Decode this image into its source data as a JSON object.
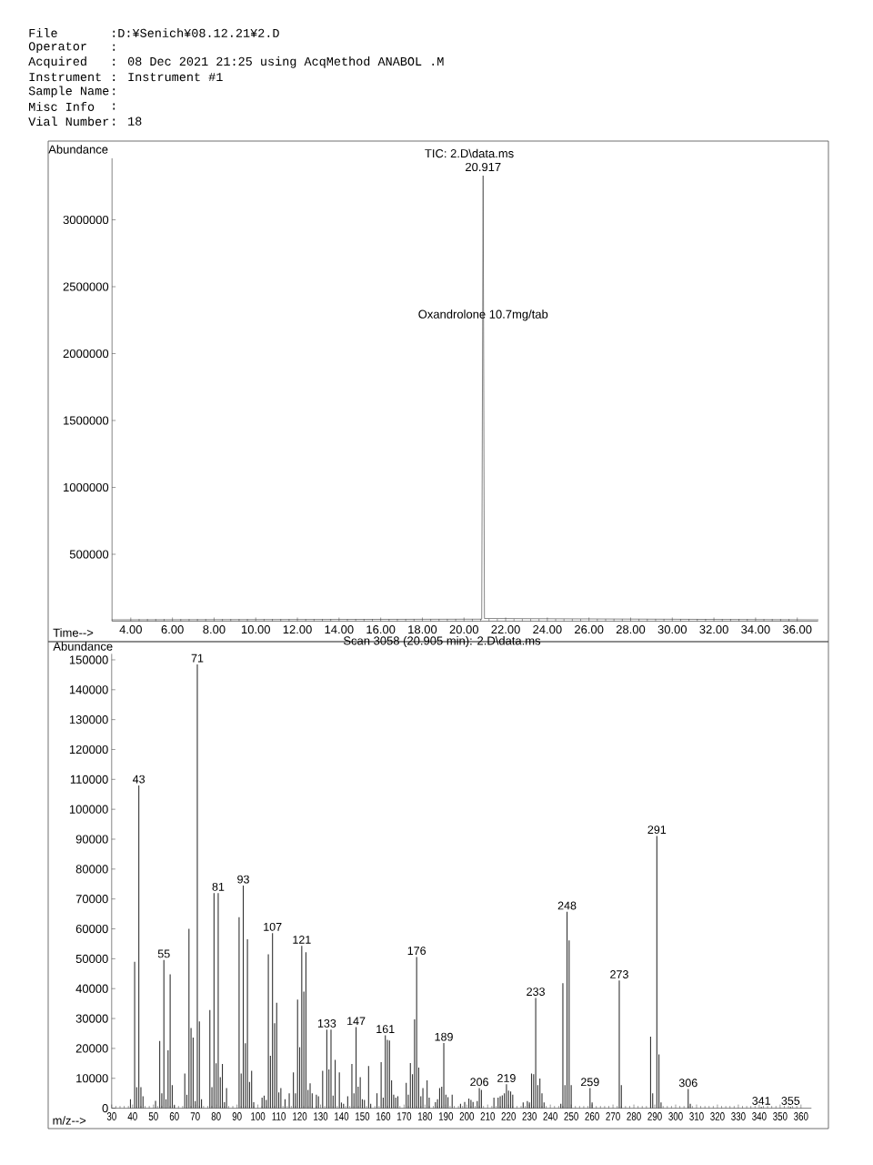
{
  "chart_data": [
    {
      "type": "other",
      "annotations": [
        "File",
        ":D:¥Senich¥08.12.21¥2.D",
        "Operator",
        ":",
        "Acquired",
        ": 08 Dec 2021 21:25 using AcqMethod ANABOL .M",
        "Instrument",
        ": Instrument #1",
        "Sample Name",
        ":",
        "Misc Info",
        ":",
        "Vial Number",
        ": 18"
      ]
    },
    {
      "type": "line",
      "title": "TIC: 2.D\\data.ms",
      "xlabel": "Time-->",
      "ylabel": "Abundance",
      "color": "#333333",
      "x": [
        3.1,
        20.85,
        20.917,
        20.98,
        37.0
      ],
      "values": [
        10000,
        15000,
        3330000,
        20000,
        10000
      ],
      "xlim": [
        3.1,
        37.0
      ],
      "ylim": [
        0,
        3460000
      ],
      "xticks": [
        {
          "value": 4,
          "label": "4.00"
        },
        {
          "value": 6,
          "label": "6.00"
        },
        {
          "value": 8,
          "label": "8.00"
        },
        {
          "value": 10,
          "label": "10.00"
        },
        {
          "value": 12,
          "label": "12.00"
        },
        {
          "value": 14,
          "label": "14.00"
        },
        {
          "value": 16,
          "label": "16.00"
        },
        {
          "value": 18,
          "label": "18.00"
        },
        {
          "value": 20,
          "label": "20.00"
        },
        {
          "value": 22,
          "label": "22.00"
        },
        {
          "value": 24,
          "label": "24.00"
        },
        {
          "value": 26,
          "label": "26.00"
        },
        {
          "value": 28,
          "label": "28.00"
        },
        {
          "value": 30,
          "label": "30.00"
        },
        {
          "value": 32,
          "label": "32.00"
        },
        {
          "value": 34,
          "label": "34.00"
        },
        {
          "value": 36,
          "label": "36.00"
        }
      ],
      "yticks": [
        500000,
        1000000,
        1500000,
        2000000,
        2500000,
        3000000
      ],
      "annotations": [
        {
          "text": "20.917",
          "x": 20.917,
          "y": 3330000
        },
        {
          "text": "Oxandrolone 10.7mg/tab",
          "x": 20.917,
          "y": 2230000
        }
      ]
    },
    {
      "type": "bar",
      "title": "Scan 3058 (20.905 min): 2.D\\data.ms",
      "xlabel": "m/z-->",
      "ylabel": "Abundance",
      "color": "#333333",
      "x": [
        39,
        41,
        42,
        43,
        44,
        45,
        51,
        53,
        54,
        55,
        56,
        57,
        58,
        59,
        60,
        65,
        66,
        67,
        68,
        69,
        70,
        71,
        72,
        73,
        77,
        78,
        79,
        80,
        81,
        82,
        83,
        84,
        85,
        91,
        92,
        93,
        94,
        95,
        96,
        97,
        98,
        102,
        103,
        104,
        105,
        106,
        107,
        108,
        109,
        110,
        111,
        113,
        115,
        117,
        118,
        119,
        120,
        121,
        122,
        123,
        124,
        125,
        126,
        128,
        129,
        131,
        133,
        134,
        135,
        136,
        137,
        139,
        140,
        141,
        143,
        145,
        146,
        147,
        148,
        149,
        150,
        151,
        153,
        154,
        157,
        159,
        160,
        161,
        162,
        163,
        164,
        165,
        166,
        167,
        171,
        172,
        173,
        174,
        175,
        176,
        177,
        178,
        179,
        181,
        182,
        185,
        186,
        187,
        188,
        189,
        190,
        191,
        193,
        197,
        199,
        201,
        202,
        203,
        205,
        206,
        207,
        213,
        215,
        216,
        217,
        218,
        219,
        220,
        221,
        222,
        227,
        229,
        230,
        231,
        232,
        233,
        234,
        235,
        236,
        237,
        245,
        246,
        247,
        248,
        249,
        250,
        259,
        260,
        273,
        274,
        288,
        289,
        291,
        292,
        293,
        306,
        307,
        341,
        355
      ],
      "values": [
        3000,
        49000,
        7000,
        108000,
        7000,
        4000,
        2500,
        22500,
        5000,
        49600,
        3000,
        19400,
        44800,
        7700,
        1000,
        11600,
        4500,
        60000,
        26800,
        23600,
        2400,
        148500,
        29000,
        3000,
        32800,
        7000,
        72000,
        15000,
        72000,
        10400,
        14800,
        2000,
        6700,
        63900,
        11600,
        74500,
        21700,
        56500,
        8800,
        12500,
        2000,
        3500,
        4200,
        2800,
        51500,
        17500,
        58600,
        28400,
        35300,
        5300,
        6700,
        3000,
        5000,
        12000,
        5000,
        36300,
        20400,
        54300,
        39000,
        52200,
        6100,
        8300,
        5000,
        4500,
        4000,
        12500,
        26300,
        13000,
        26300,
        4200,
        16200,
        12000,
        1900,
        1500,
        4000,
        14800,
        5000,
        27100,
        7200,
        10400,
        3000,
        2800,
        14100,
        1500,
        5000,
        15400,
        3500,
        24400,
        22900,
        22600,
        9300,
        4500,
        3500,
        4000,
        8500,
        4500,
        15100,
        11400,
        29700,
        50600,
        13600,
        4000,
        6700,
        9300,
        3500,
        2000,
        3000,
        6700,
        7200,
        21800,
        4500,
        3700,
        4500,
        1500,
        2100,
        3200,
        2800,
        2100,
        2400,
        6700,
        6100,
        3500,
        3500,
        4000,
        4300,
        5000,
        8000,
        5900,
        5600,
        4500,
        1900,
        2400,
        1900,
        11600,
        11400,
        36900,
        7700,
        9900,
        5000,
        1900,
        1500,
        41800,
        7700,
        65700,
        56100,
        7700,
        6700,
        1900,
        42700,
        7700,
        23900,
        5000,
        91100,
        18000,
        1900,
        6400,
        1500,
        400,
        400
      ],
      "xlim": [
        30,
        365
      ],
      "ylim": [
        0,
        152000
      ],
      "xticks": [
        30,
        40,
        50,
        60,
        70,
        80,
        90,
        100,
        110,
        120,
        130,
        140,
        150,
        160,
        170,
        180,
        190,
        200,
        210,
        220,
        230,
        240,
        250,
        260,
        270,
        280,
        290,
        300,
        310,
        320,
        330,
        340,
        350,
        360
      ],
      "yticks": [
        0,
        10000,
        20000,
        30000,
        40000,
        50000,
        60000,
        70000,
        80000,
        90000,
        100000,
        110000,
        120000,
        130000,
        140000,
        150000
      ],
      "annotations": [
        {
          "text": "43",
          "x": 43,
          "y": 108000
        },
        {
          "text": "55",
          "x": 55,
          "y": 49600
        },
        {
          "text": "71",
          "x": 71,
          "y": 148500
        },
        {
          "text": "81",
          "x": 81,
          "y": 72000
        },
        {
          "text": "93",
          "x": 93,
          "y": 74500
        },
        {
          "text": "107",
          "x": 107,
          "y": 58600
        },
        {
          "text": "121",
          "x": 121,
          "y": 54300
        },
        {
          "text": "133",
          "x": 133,
          "y": 26300
        },
        {
          "text": "147",
          "x": 147,
          "y": 27100
        },
        {
          "text": "161",
          "x": 161,
          "y": 24400
        },
        {
          "text": "176",
          "x": 176,
          "y": 50600
        },
        {
          "text": "189",
          "x": 189,
          "y": 21800
        },
        {
          "text": "206",
          "x": 206,
          "y": 6700
        },
        {
          "text": "219",
          "x": 219,
          "y": 8000
        },
        {
          "text": "233",
          "x": 233,
          "y": 36900
        },
        {
          "text": "248",
          "x": 248,
          "y": 65700
        },
        {
          "text": "259",
          "x": 259,
          "y": 6700
        },
        {
          "text": "273",
          "x": 273,
          "y": 42700
        },
        {
          "text": "291",
          "x": 291,
          "y": 91100
        },
        {
          "text": "306",
          "x": 306,
          "y": 6400
        },
        {
          "text": "341",
          "x": 341,
          "y": 400
        },
        {
          "text": "355",
          "x": 355,
          "y": 400
        }
      ]
    }
  ]
}
